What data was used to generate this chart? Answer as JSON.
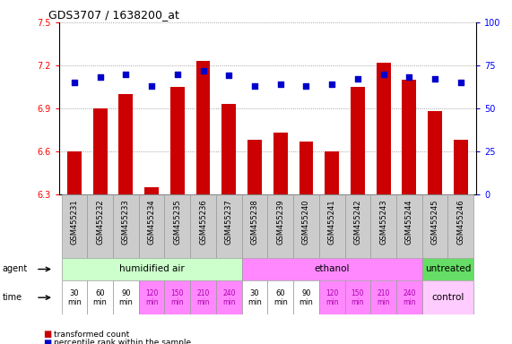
{
  "title": "GDS3707 / 1638200_at",
  "samples": [
    "GSM455231",
    "GSM455232",
    "GSM455233",
    "GSM455234",
    "GSM455235",
    "GSM455236",
    "GSM455237",
    "GSM455238",
    "GSM455239",
    "GSM455240",
    "GSM455241",
    "GSM455242",
    "GSM455243",
    "GSM455244",
    "GSM455245",
    "GSM455246"
  ],
  "transformed_counts": [
    6.6,
    6.9,
    7.0,
    6.35,
    7.05,
    7.23,
    6.93,
    6.68,
    6.73,
    6.67,
    6.6,
    7.05,
    7.22,
    7.1,
    6.88,
    6.68
  ],
  "percentile_ranks": [
    65,
    68,
    70,
    63,
    70,
    72,
    69,
    63,
    64,
    63,
    64,
    67,
    70,
    68,
    67,
    65
  ],
  "ylim_left": [
    6.3,
    7.5
  ],
  "ylim_right": [
    0,
    100
  ],
  "yticks_left": [
    6.3,
    6.6,
    6.9,
    7.2,
    7.5
  ],
  "yticks_right": [
    0,
    25,
    50,
    75,
    100
  ],
  "bar_color": "#cc0000",
  "dot_color": "#0000cc",
  "grid_color": "#888888",
  "bg_color": "#ffffff",
  "agent_groups": [
    {
      "label": "humidified air",
      "start": 0,
      "end": 7,
      "color": "#ccffcc"
    },
    {
      "label": "ethanol",
      "start": 7,
      "end": 14,
      "color": "#ff88ff"
    },
    {
      "label": "untreated",
      "start": 14,
      "end": 16,
      "color": "#66dd66"
    }
  ],
  "time_labels": [
    "30\nmin",
    "60\nmin",
    "90\nmin",
    "120\nmin",
    "150\nmin",
    "210\nmin",
    "240\nmin",
    "30\nmin",
    "60\nmin",
    "90\nmin",
    "120\nmin",
    "150\nmin",
    "210\nmin",
    "240\nmin"
  ],
  "time_colors_white": [
    true,
    true,
    true,
    false,
    false,
    false,
    false,
    true,
    true,
    true,
    false,
    false,
    false,
    false
  ],
  "time_color_white": "#ffffff",
  "time_color_pink": "#ff88ff",
  "control_label": "control",
  "control_color": "#ffccff",
  "sample_bg_color": "#cccccc",
  "legend_items": [
    {
      "color": "#cc0000",
      "label": "transformed count"
    },
    {
      "color": "#0000cc",
      "label": "percentile rank within the sample"
    }
  ],
  "left_label": "agent",
  "time_label": "time"
}
